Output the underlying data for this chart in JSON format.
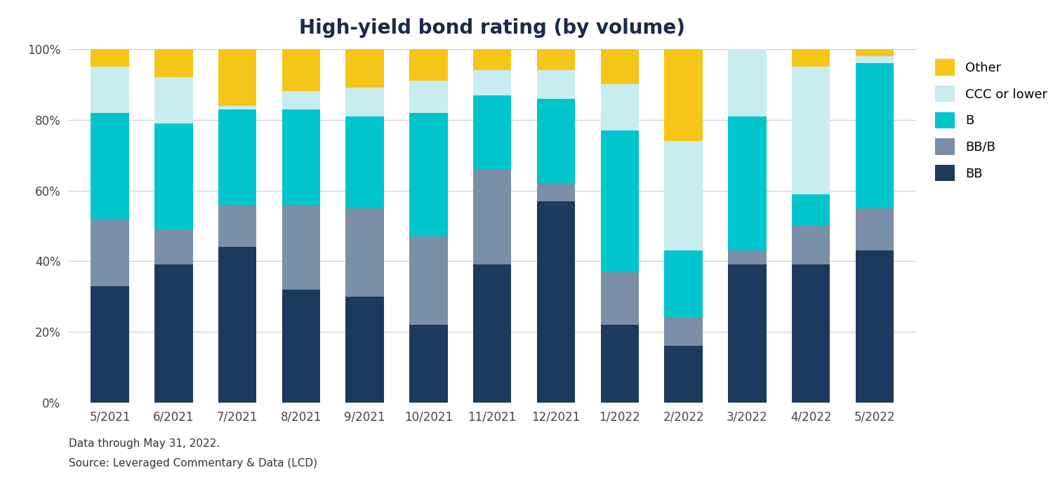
{
  "title": "High-yield bond rating (by volume)",
  "categories": [
    "5/2021",
    "6/2021",
    "7/2021",
    "8/2021",
    "9/2021",
    "10/2021",
    "11/2021",
    "12/2021",
    "1/2022",
    "2/2022",
    "3/2022",
    "4/2022",
    "5/2022"
  ],
  "series": {
    "BB": [
      33,
      39,
      44,
      32,
      30,
      22,
      39,
      57,
      22,
      16,
      39,
      39,
      43
    ],
    "BB/B": [
      19,
      10,
      12,
      24,
      25,
      25,
      27,
      5,
      15,
      8,
      4,
      11,
      12
    ],
    "B": [
      30,
      30,
      27,
      27,
      26,
      35,
      21,
      24,
      40,
      19,
      38,
      9,
      41
    ],
    "CCC or lower": [
      13,
      13,
      1,
      5,
      8,
      9,
      7,
      8,
      13,
      31,
      19,
      36,
      2
    ],
    "Other": [
      5,
      8,
      16,
      12,
      11,
      9,
      6,
      6,
      10,
      26,
      0,
      5,
      2
    ]
  },
  "colors": {
    "BB": "#1b3a5e",
    "BB/B": "#7b8fa8",
    "B": "#00c5cd",
    "CCC or lower": "#c8edf0",
    "Other": "#f5c518"
  },
  "legend_order": [
    "Other",
    "CCC or lower",
    "B",
    "BB/B",
    "BB"
  ],
  "ylim": [
    0,
    100
  ],
  "yticks": [
    0,
    20,
    40,
    60,
    80,
    100
  ],
  "ytick_labels": [
    "0%",
    "20%",
    "40%",
    "60%",
    "80%",
    "100%"
  ],
  "footnote1": "Data through May 31, 2022.",
  "footnote2": "Source: Leveraged Commentary & Data (LCD)",
  "bg_color": "#ffffff",
  "grid_color": "#cccccc",
  "title_fontsize": 20,
  "tick_fontsize": 12,
  "legend_fontsize": 13,
  "bar_width": 0.6
}
